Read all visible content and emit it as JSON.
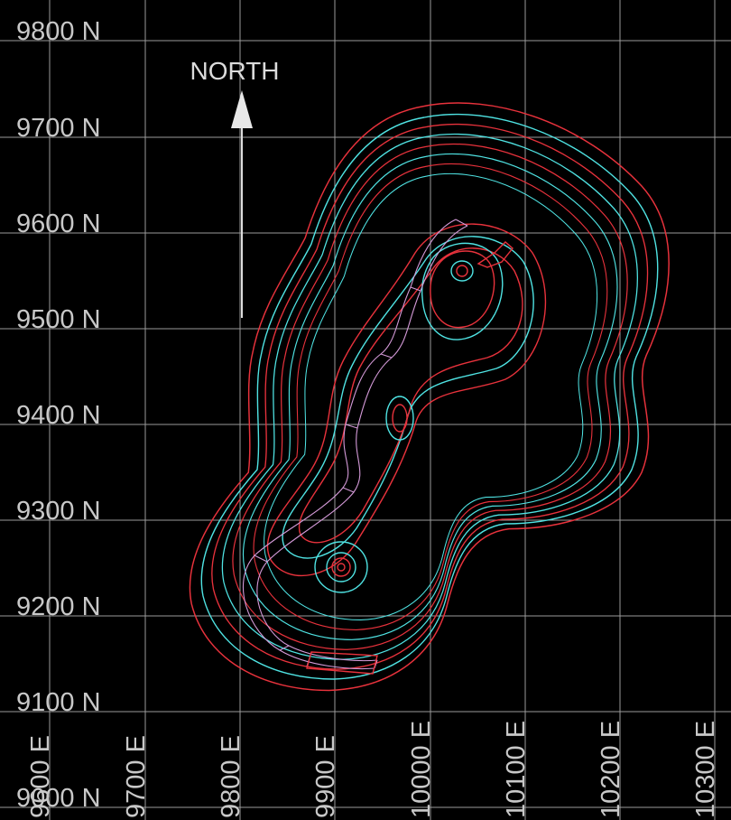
{
  "north_arrow": {
    "label": "NORTH"
  },
  "northing_labels": [
    "9800 N",
    "9700 N",
    "9600 N",
    "9500 N",
    "9400 N",
    "9300 N",
    "9200 N",
    "9100 N",
    "9000 N"
  ],
  "easting_labels": [
    "9600 E",
    "9700 E",
    "9800 E",
    "9900 E",
    "10000 E",
    "10100 E",
    "10200 E",
    "10300 E"
  ],
  "colors": {
    "background": "#000000",
    "grid": "#9a9a9a",
    "labels": "#c8c8c8",
    "contour_red": "#e8323c",
    "contour_cyan": "#4fe3e3",
    "bench_lines": "#d49ad8"
  }
}
